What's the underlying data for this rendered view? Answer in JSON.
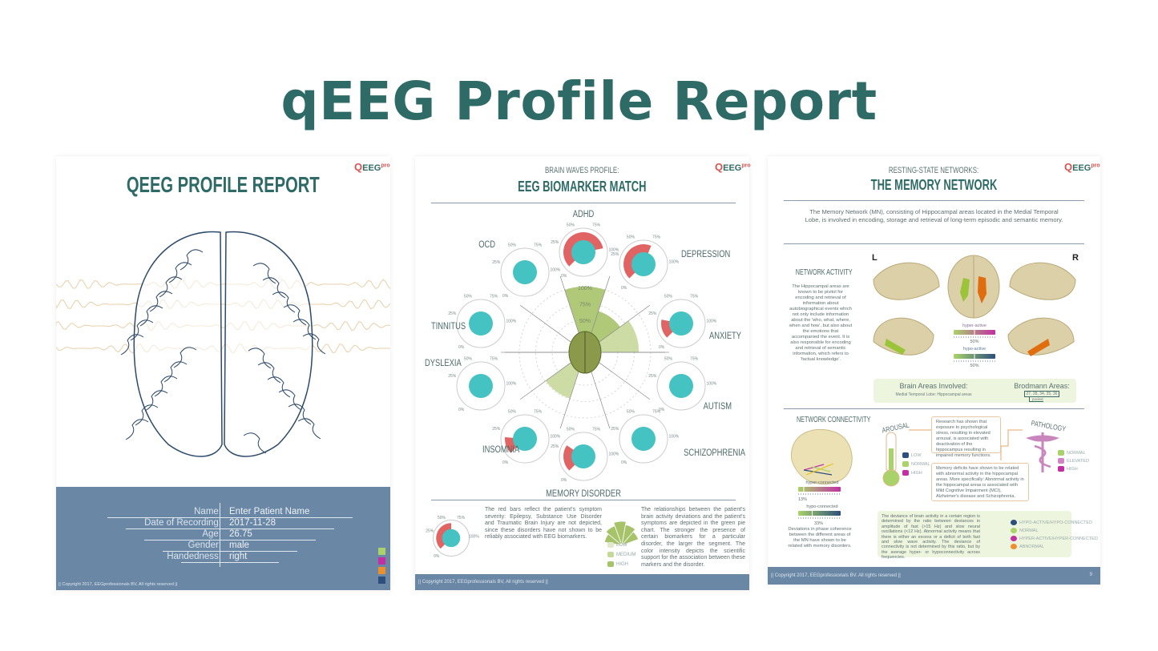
{
  "headline": "qEEG Profile Report",
  "logo": {
    "text": "EEG",
    "sup": "pro"
  },
  "colors": {
    "accent": "#2f6b66",
    "footer": "#6a87a5",
    "teal": "#45c2c2",
    "red": "#e06464",
    "green": "#a6c36a",
    "wave": "#e8cfa9"
  },
  "cover": {
    "title": "QEEG PROFILE REPORT",
    "fields": [
      {
        "label": "Name:",
        "value": "Enter Patient Name"
      },
      {
        "label": "Date of Recording:",
        "value": "2017-11-28"
      },
      {
        "label": "Age:",
        "value": "26.75"
      },
      {
        "label": "Gender:",
        "value": "male"
      },
      {
        "label": "Handedness:",
        "value": "right"
      }
    ],
    "swatches": [
      "#a9d36a",
      "#c22fa3",
      "#ec8f2c",
      "#2d4f7c"
    ],
    "copyright": "|| Copyright 2017, EEGprofessionals BV, All rights reserved ||"
  },
  "biomarker": {
    "subtitle": "BRAIN WAVES PROFILE:",
    "title": "EEG BIOMARKER MATCH",
    "tick_labels": [
      "0%",
      "25%",
      "50%",
      "75%",
      "100%"
    ],
    "polar_ring_labels": [
      "50%",
      "75%",
      "100%"
    ],
    "disorders": [
      {
        "name": "ADHD",
        "severity": 95,
        "biomarker": 100,
        "support": "medium"
      },
      {
        "name": "DEPRESSION",
        "severity": 70,
        "biomarker": 66,
        "support": "medium"
      },
      {
        "name": "ANXIETY",
        "severity": 25,
        "biomarker": 82,
        "support": "low"
      },
      {
        "name": "AUTISM",
        "severity": 0,
        "biomarker": 0,
        "support": "low"
      },
      {
        "name": "SCHIZOPHRENIA",
        "severity": 0,
        "biomarker": 0,
        "support": "low"
      },
      {
        "name": "MEMORY DISORDER",
        "severity": 35,
        "biomarker": 0,
        "support": "low"
      },
      {
        "name": "INSOMNIA",
        "severity": 22,
        "biomarker": 74,
        "support": "low"
      },
      {
        "name": "DYSLEXIA",
        "severity": 0,
        "biomarker": 0,
        "support": "low"
      },
      {
        "name": "TINNITUS",
        "severity": 0,
        "biomarker": 0,
        "support": "low"
      },
      {
        "name": "OCD",
        "severity": 0,
        "biomarker": 0,
        "support": "low"
      }
    ],
    "legend_gauge_severity": 60,
    "red_bar_text": "The red bars reflect the patient's symptom severity: Epilepsy, Substance Use Disorder and Traumatic Brain Injury are not depicted, since these disorders have not shown to be reliably associated with EEG biomarkers.",
    "support_legend": [
      {
        "label": "LOW",
        "color": "#e1e8cc"
      },
      {
        "label": "MEDIUM",
        "color": "#c6d89a"
      },
      {
        "label": "HIGH",
        "color": "#a6c36a"
      }
    ],
    "pie_text": "The relationships between the patient's brain activity deviations and the patient's symptoms are depicted in the green pie chart. The stronger the presence of certain biomarkers for a particular disorder, the larger the segment. The color intensity depicts the scientific support for the association between these markers and the disorder.",
    "copyright": "|| Copyright 2017, EEGprofessionals BV, All rights reserved ||"
  },
  "memory": {
    "subtitle": "RESTING-STATE NETWORKS:",
    "title": "THE MEMORY NETWORK",
    "intro": "The Memory Network (MN), consisting of Hippocampal areas located in the Medial Temporal Lobe, is involved in encoding, storage and retrieval of long-term episodic and semantic memory.",
    "activity": {
      "heading": "NETWORK ACTIVITY",
      "text": "The Hippocampal areas are known to be pivitol for encoding and retrieval of information about autobiographical events which not only include information about the 'who, what, where, when and how', but also about the emotions that accompanied the event. It is also responsible for encoding and retrieval of semantic information, which refers to 'factual knowledge'.",
      "left_label": "L",
      "right_label": "R",
      "hyper_label": "hyper-active",
      "hyper_value": "50%",
      "hypo_label": "hypo-active",
      "hypo_value": "50%"
    },
    "areas": {
      "heading": "Brain Areas Involved:",
      "value": "Medial Temporal Lobe: Hippocampal areas",
      "brodmann_heading": "Brodmann Areas:",
      "brodmann_value": "27, 28, 34, 35, 36",
      "pooled": "pooled"
    },
    "connectivity": {
      "heading": "NETWORK CONNECTIVITY",
      "hyper_label": "hyper-connected",
      "hyper_value": "13%",
      "hypo_label": "hypo-connected",
      "hypo_value": "33%",
      "text": "Deviations in phase coherence between the different areas of the MN have shown to be related with memory disorders."
    },
    "arousal": {
      "heading": "AROUSAL",
      "legend": [
        {
          "label": "LOW",
          "color": "#2d4f7c"
        },
        {
          "label": "NORMAL",
          "color": "#a9d36a"
        },
        {
          "label": "HIGH",
          "color": "#c22fa3"
        }
      ],
      "text": "Research has shown that exposure to psychological stress, resulting in elevated arousal, is associated with deactivation of the hippocampus resulting in impaired memory functions."
    },
    "pathology": {
      "heading": "PATHOLOGY",
      "legend": [
        {
          "label": "NORMAL",
          "color": "#a9d36a"
        },
        {
          "label": "ELEVATED",
          "color": "#d184c4"
        },
        {
          "label": "HIGH",
          "color": "#c22fa3"
        }
      ],
      "text": "Memory deficits have shown to be related with abnormal activity in the hippocampal areas. More specifically: Abnormal activity in the hippocampal areas is associated with Mild Cognitive Impairment (MCI), Alzheimer's disease and Schizophrenia."
    },
    "deviance": {
      "text": "The deviance of brain activity in a certain region is determined by the ratio between deviances in amplitude of fast (>15 Hz) and slow neural oscillations (<12 Hz). Abnormal activity means that there is either an excess or a deficit of both fast and slow wave activity. The deviance of connectivity is not determined by this ratio, but by the average hyper- or hypoconnectivity across frequencies.",
      "legend": [
        {
          "label": "HYPO-ACTIVE/HYPO-CONNECTED",
          "color": "#2d4f7c"
        },
        {
          "label": "NORMAL",
          "color": "#a9d36a"
        },
        {
          "label": "HYPER-ACTIVE/HYPER-CONNECTED",
          "color": "#c22fa3"
        },
        {
          "label": "ABNORMAL",
          "color": "#ec8f2c"
        }
      ]
    },
    "copyright": "|| Copyright 2017, EEGprofessionals BV. All rights reserved ||",
    "page_number": "9"
  }
}
